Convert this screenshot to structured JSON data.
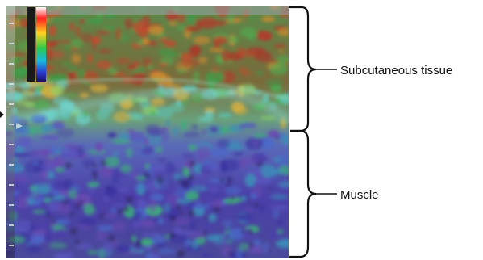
{
  "annotations": {
    "upper_region_label": "Subcutaneous tissue",
    "lower_region_label": "Muscle"
  },
  "colors": {
    "background": "#ffffff",
    "bracket": "#111111",
    "upper_tissue_red": "#c0392b",
    "upper_tissue_green": "#4caf50",
    "lower_tissue_blue": "#4b3fa8",
    "boundary_cyan": "#7fe0e8"
  },
  "color_scale": [
    "#ffffff",
    "#ff2020",
    "#ffd21f",
    "#2ec84a",
    "#19b9e0",
    "#2a3ad0",
    "#1a0f60"
  ]
}
